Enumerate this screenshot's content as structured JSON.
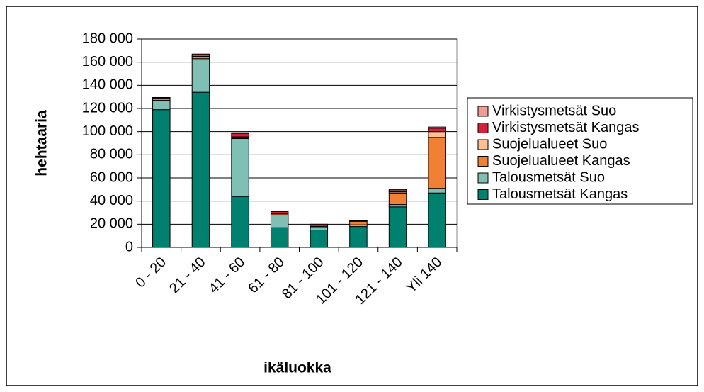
{
  "chart_data": {
    "type": "stacked_bar",
    "x_label": "ikäluokka",
    "y_label": "hehtaaria",
    "categories": [
      "0 - 20",
      "21 - 40",
      "41 - 60",
      "61 - 80",
      "81 - 100",
      "101 - 120",
      "121 - 140",
      "Yli 140"
    ],
    "series": [
      {
        "name": "Talousmetsät Kangas",
        "color": "#00806f",
        "values": [
          119000,
          134000,
          44000,
          17000,
          15000,
          18000,
          35000,
          47000
        ]
      },
      {
        "name": "Talousmetsät Suo",
        "color": "#80c0b4",
        "values": [
          8000,
          29000,
          50000,
          11000,
          2000,
          1500,
          2000,
          4000
        ]
      },
      {
        "name": "Suojelualueet Kangas",
        "color": "#f08033",
        "values": [
          2000,
          2000,
          1000,
          1000,
          1000,
          3000,
          10000,
          44000
        ]
      },
      {
        "name": "Suojelualueet Suo",
        "color": "#ffc193",
        "values": [
          500,
          1000,
          500,
          0,
          0,
          500,
          1000,
          5000
        ]
      },
      {
        "name": "Virkistysmetsät Kangas",
        "color": "#d6203a",
        "values": [
          0,
          1000,
          3000,
          2000,
          2000,
          500,
          1000,
          3000
        ]
      },
      {
        "name": "Virkistysmetsät Suo",
        "color": "#f09c90",
        "values": [
          0,
          0,
          500,
          0,
          0,
          0,
          1000,
          1000
        ]
      }
    ],
    "ylim": [
      0,
      180000
    ],
    "yticks": [
      0,
      {
        "value": 20000,
        "label": "20 000"
      },
      {
        "value": 40000,
        "label": "40 000"
      },
      {
        "value": 60000,
        "label": "60 000"
      },
      {
        "value": 80000,
        "label": "80 000"
      },
      {
        "value": 100000,
        "label": "100 000"
      },
      {
        "value": 120000,
        "label": "120 000"
      },
      {
        "value": 140000,
        "label": "140 000"
      },
      {
        "value": 160000,
        "label": "160 000"
      },
      {
        "value": 180000,
        "label": "180 000"
      }
    ],
    "grid": true,
    "legend": "right"
  }
}
